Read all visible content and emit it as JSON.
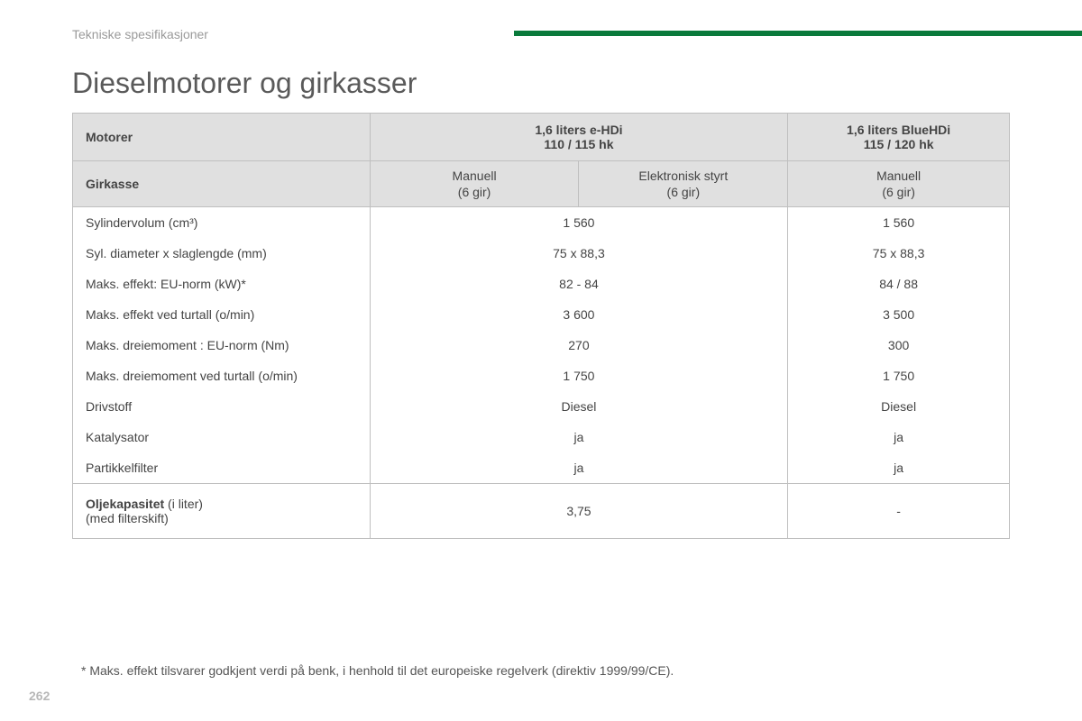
{
  "section_label": "Tekniske spesifikasjoner",
  "title": "Dieselmotorer og girkasser",
  "header_bar_color": "#0a7a3b",
  "table": {
    "motors_label": "Motorer",
    "engines": [
      {
        "name": "1,6 liters e-HDi",
        "power": "110 / 115 hk"
      },
      {
        "name": "1,6 liters BlueHDi",
        "power": "115 / 120 hk"
      }
    ],
    "gearbox_label": "Girkasse",
    "gearboxes": [
      {
        "type": "Manuell",
        "gears": "(6 gir)"
      },
      {
        "type": "Elektronisk styrt",
        "gears": "(6 gir)"
      },
      {
        "type": "Manuell",
        "gears": "(6 gir)"
      }
    ],
    "rows": [
      {
        "label": "Sylindervolum (cm³)",
        "v1": "1 560",
        "v2": "1 560"
      },
      {
        "label": "Syl. diameter x slaglengde (mm)",
        "v1": "75 x 88,3",
        "v2": "75 x 88,3"
      },
      {
        "label": "Maks. effekt: EU-norm (kW)*",
        "v1": "82 - 84",
        "v2": "84 / 88"
      },
      {
        "label": "Maks. effekt ved turtall (o/min)",
        "v1": "3 600",
        "v2": "3 500"
      },
      {
        "label": "Maks. dreiemoment : EU-norm (Nm)",
        "v1": "270",
        "v2": "300"
      },
      {
        "label": "Maks. dreiemoment ved turtall (o/min)",
        "v1": "1 750",
        "v2": "1 750"
      },
      {
        "label": "Drivstoff",
        "v1": "Diesel",
        "v2": "Diesel"
      },
      {
        "label": "Katalysator",
        "v1": "ja",
        "v2": "ja"
      },
      {
        "label": "Partikkelfilter",
        "v1": "ja",
        "v2": "ja"
      }
    ],
    "oil": {
      "label_bold": "Oljekapasitet",
      "label_rest": " (i liter)",
      "label_line2": "(med filterskift)",
      "v1": "3,75",
      "v2": "-"
    }
  },
  "footnote": "* Maks. effekt tilsvarer godkjent verdi på benk, i henhold til det europeiske regelverk (direktiv 1999/99/CE).",
  "page_number": "262"
}
